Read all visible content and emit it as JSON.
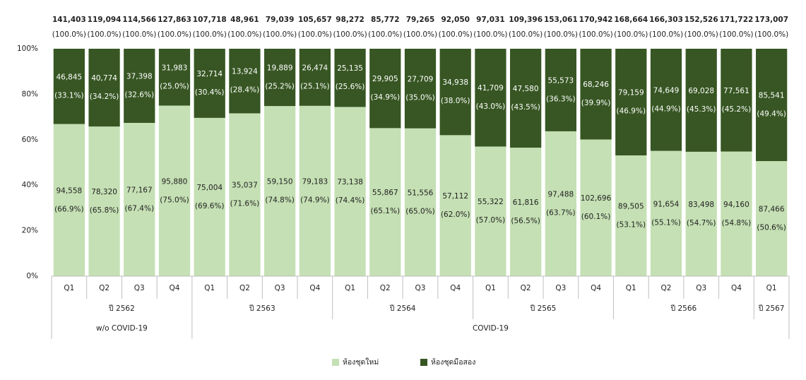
{
  "chart_data": {
    "type": "stacked_bar_percent",
    "groups": [
      {
        "label": "w/o COVID-19",
        "years": [
          {
            "label": "ปี 2562",
            "categories": [
              "Q1",
              "Q2",
              "Q3",
              "Q4"
            ]
          }
        ]
      },
      {
        "label": "COVID-19",
        "years": [
          {
            "label": "ปี 2563",
            "categories": [
              "Q1",
              "Q2",
              "Q3",
              "Q4"
            ]
          },
          {
            "label": "ปี 2564",
            "categories": [
              "Q1",
              "Q2",
              "Q3",
              "Q4"
            ]
          },
          {
            "label": "ปี 2565",
            "categories": [
              "Q1",
              "Q2",
              "Q3",
              "Q4"
            ]
          },
          {
            "label": "ปี 2566",
            "categories": [
              "Q1",
              "Q2",
              "Q3",
              "Q4"
            ]
          },
          {
            "label": "ปี 2567",
            "categories": [
              "Q1"
            ]
          }
        ]
      }
    ],
    "total_labels": [
      "141,403",
      "119,094",
      "114,566",
      "127,863",
      "107,718",
      "48,961",
      "79,039",
      "105,657",
      "98,272",
      "85,772",
      "79,265",
      "92,050",
      "97,031",
      "109,396",
      "153,061",
      "170,942",
      "168,664",
      "166,303",
      "152,526",
      "171,722",
      "173,007"
    ],
    "total_percent_labels": [
      "(100.0%)",
      "(100.0%)",
      "(100.0%)",
      "(100.0%)",
      "(100.0%)",
      "(100.0%)",
      "(100.0%)",
      "(100.0%)",
      "(100.0%)",
      "(100.0%)",
      "(100.0%)",
      "(100.0%)",
      "(100.0%)",
      "(100.0%)",
      "(100.0%)",
      "(100.0%)",
      "(100.0%)",
      "(100.0%)",
      "(100.0%)",
      "(100.0%)",
      "(100.0%)"
    ],
    "series": [
      {
        "name": "ห้องชุดใหม่",
        "color": "#c5e0b4",
        "label_color": "#222222",
        "values": [
          66.9,
          65.8,
          67.4,
          75.0,
          69.6,
          71.6,
          74.8,
          74.9,
          74.4,
          65.1,
          65.0,
          62.0,
          57.0,
          56.5,
          63.7,
          60.1,
          53.1,
          55.1,
          54.7,
          54.8,
          50.6
        ],
        "value_labels": [
          "(66.9%)",
          "(65.8%)",
          "(67.4%)",
          "(75.0%)",
          "(69.6%)",
          "(71.6%)",
          "(74.8%)",
          "(74.9%)",
          "(74.4%)",
          "(65.1%)",
          "(65.0%)",
          "(62.0%)",
          "(57.0%)",
          "(56.5%)",
          "(63.7%)",
          "(60.1%)",
          "(53.1%)",
          "(55.1%)",
          "(54.7%)",
          "(54.8%)",
          "(50.6%)"
        ],
        "count_labels": [
          "94,558",
          "78,320",
          "77,167",
          "95,880",
          "75,004",
          "35,037",
          "59,150",
          "79,183",
          "73,138",
          "55,867",
          "51,556",
          "57,112",
          "55,322",
          "61,816",
          "97,488",
          "102,696",
          "89,505",
          "91,654",
          "83,498",
          "94,160",
          "87,466"
        ]
      },
      {
        "name": "ห้องชุดมือสอง",
        "color": "#375623",
        "label_color": "#ffffff",
        "values": [
          33.1,
          34.2,
          32.6,
          25.0,
          30.4,
          28.4,
          25.2,
          25.1,
          25.6,
          34.9,
          35.0,
          38.0,
          43.0,
          43.5,
          36.3,
          39.9,
          46.9,
          44.9,
          45.3,
          45.2,
          49.4
        ],
        "value_labels": [
          "(33.1%)",
          "(34.2%)",
          "(32.6%)",
          "(25.0%)",
          "(30.4%)",
          "(28.4%)",
          "(25.2%)",
          "(25.1%)",
          "(25.6%)",
          "(34.9%)",
          "(35.0%)",
          "(38.0%)",
          "(43.0%)",
          "(43.5%)",
          "(36.3%)",
          "(39.9%)",
          "(46.9%)",
          "(44.9%)",
          "(45.3%)",
          "(45.2%)",
          "(49.4%)"
        ],
        "count_labels": [
          "46,845",
          "40,774",
          "37,398",
          "31,983",
          "32,714",
          "13,924",
          "19,889",
          "26,474",
          "25,135",
          "29,905",
          "27,709",
          "34,938",
          "41,709",
          "47,580",
          "55,573",
          "68,246",
          "79,159",
          "74,649",
          "69,028",
          "77,561",
          "85,541"
        ]
      }
    ],
    "ylim": [
      0,
      100
    ],
    "yticks": [
      {
        "value": 0,
        "label": "0%"
      },
      {
        "value": 20,
        "label": "20%"
      },
      {
        "value": 40,
        "label": "40%"
      },
      {
        "value": 60,
        "label": "60%"
      },
      {
        "value": 80,
        "label": "80%"
      },
      {
        "value": 100,
        "label": "100%"
      }
    ],
    "grid": false,
    "legend": "bottom"
  }
}
